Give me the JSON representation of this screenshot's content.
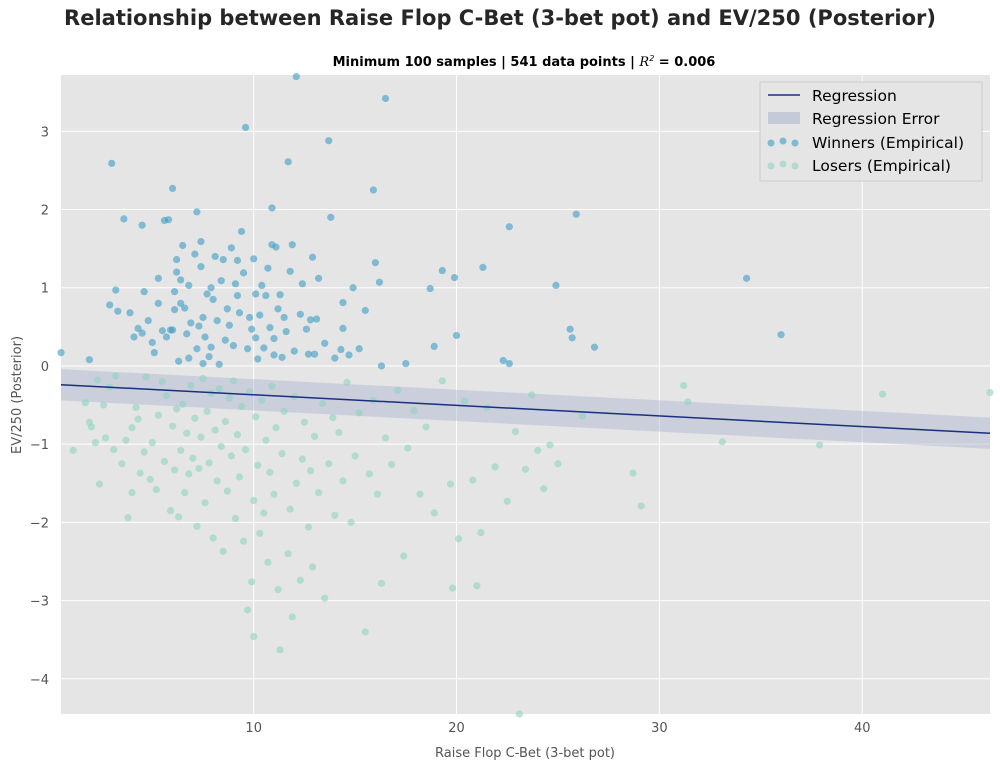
{
  "chart_data": {
    "type": "scatter",
    "title": "Relationship between Raise Flop C-Bet (3-bet pot) and EV/250 (Posterior)",
    "subtitle": {
      "prefix": "Minimum 100 samples | 541 data points | ",
      "r2_label": "R",
      "r2_sup": "2",
      "r2_value": " =  0.006"
    },
    "xlabel": "Raise Flop C-Bet (3-bet pot)",
    "ylabel": "EV/250 (Posterior)",
    "xlim": [
      0.5,
      46.3
    ],
    "ylim": [
      -4.45,
      3.72
    ],
    "xticks": [
      10,
      20,
      30,
      40
    ],
    "yticks": [
      -4,
      -3,
      -2,
      -1,
      0,
      1,
      2,
      3
    ],
    "ytick_labels": [
      "−4",
      "−3",
      "−2",
      "−1",
      "0",
      "1",
      "2",
      "3"
    ],
    "grid": true,
    "legend_position": "top-right",
    "legend": [
      "Regression",
      "Regression Error",
      "Winners (Empirical)",
      "Losers (Empirical)"
    ],
    "colors": {
      "background": "#e5e5e5",
      "grid": "#ffffff",
      "regression": "#1a2f80",
      "band": "#a3b0cc",
      "winners": "#3b9cc4",
      "losers": "#8fd4bf"
    },
    "regression": {
      "x": [
        0.5,
        46.3
      ],
      "y": [
        -0.24,
        -0.86
      ]
    },
    "band": {
      "x": [
        0.5,
        46.3
      ],
      "upper": [
        -0.04,
        -0.66
      ],
      "lower": [
        -0.44,
        -1.06
      ]
    },
    "series": [
      {
        "name": "Winners (Empirical)",
        "points": [
          [
            0.5,
            0.17
          ],
          [
            1.9,
            0.08
          ],
          [
            3.0,
            2.59
          ],
          [
            3.6,
            1.88
          ],
          [
            2.9,
            0.78
          ],
          [
            3.2,
            0.97
          ],
          [
            3.3,
            0.7
          ],
          [
            3.9,
            0.68
          ],
          [
            4.1,
            0.37
          ],
          [
            4.3,
            0.48
          ],
          [
            4.5,
            0.42
          ],
          [
            4.5,
            1.8
          ],
          [
            4.6,
            0.95
          ],
          [
            4.8,
            0.58
          ],
          [
            5.0,
            0.3
          ],
          [
            5.1,
            0.17
          ],
          [
            5.3,
            0.8
          ],
          [
            5.3,
            1.12
          ],
          [
            5.5,
            0.45
          ],
          [
            5.6,
            1.86
          ],
          [
            5.7,
            0.37
          ],
          [
            5.8,
            1.87
          ],
          [
            5.9,
            0.46
          ],
          [
            6.0,
            0.46
          ],
          [
            6.0,
            2.27
          ],
          [
            6.1,
            0.95
          ],
          [
            6.1,
            0.72
          ],
          [
            6.2,
            1.2
          ],
          [
            6.2,
            1.36
          ],
          [
            6.3,
            0.06
          ],
          [
            6.4,
            1.1
          ],
          [
            6.4,
            0.8
          ],
          [
            6.5,
            1.54
          ],
          [
            6.6,
            0.74
          ],
          [
            6.7,
            0.41
          ],
          [
            6.8,
            1.03
          ],
          [
            6.8,
            0.1
          ],
          [
            6.9,
            0.55
          ],
          [
            7.1,
            1.43
          ],
          [
            7.2,
            0.22
          ],
          [
            7.2,
            1.97
          ],
          [
            7.3,
            0.51
          ],
          [
            7.4,
            1.59
          ],
          [
            7.4,
            1.27
          ],
          [
            7.5,
            0.62
          ],
          [
            7.5,
            0.03
          ],
          [
            7.6,
            0.37
          ],
          [
            7.7,
            0.92
          ],
          [
            7.8,
            0.12
          ],
          [
            7.9,
            1.0
          ],
          [
            7.9,
            0.24
          ],
          [
            8.0,
            0.85
          ],
          [
            8.1,
            1.4
          ],
          [
            8.2,
            0.58
          ],
          [
            8.3,
            0.02
          ],
          [
            8.4,
            1.09
          ],
          [
            8.5,
            1.36
          ],
          [
            8.6,
            0.33
          ],
          [
            8.7,
            0.73
          ],
          [
            8.8,
            0.52
          ],
          [
            8.9,
            1.51
          ],
          [
            9.0,
            0.26
          ],
          [
            9.1,
            1.05
          ],
          [
            9.2,
            0.9
          ],
          [
            9.2,
            1.35
          ],
          [
            9.3,
            0.68
          ],
          [
            9.4,
            1.72
          ],
          [
            9.5,
            1.19
          ],
          [
            9.6,
            3.05
          ],
          [
            9.7,
            0.22
          ],
          [
            9.8,
            0.62
          ],
          [
            9.9,
            0.47
          ],
          [
            10.0,
            1.37
          ],
          [
            10.1,
            0.92
          ],
          [
            10.1,
            0.36
          ],
          [
            10.2,
            0.09
          ],
          [
            10.3,
            0.65
          ],
          [
            10.4,
            1.03
          ],
          [
            10.5,
            0.23
          ],
          [
            10.6,
            0.9
          ],
          [
            10.7,
            1.25
          ],
          [
            10.8,
            0.49
          ],
          [
            10.9,
            2.02
          ],
          [
            10.9,
            1.55
          ],
          [
            11.0,
            0.35
          ],
          [
            11.0,
            0.14
          ],
          [
            11.1,
            1.52
          ],
          [
            11.2,
            0.73
          ],
          [
            11.3,
            0.91
          ],
          [
            11.4,
            0.11
          ],
          [
            11.5,
            0.62
          ],
          [
            11.6,
            0.44
          ],
          [
            11.7,
            2.61
          ],
          [
            11.8,
            1.21
          ],
          [
            11.9,
            1.55
          ],
          [
            12.0,
            0.19
          ],
          [
            12.1,
            3.7
          ],
          [
            12.3,
            0.66
          ],
          [
            12.4,
            1.05
          ],
          [
            12.6,
            0.47
          ],
          [
            12.7,
            0.15
          ],
          [
            12.8,
            0.59
          ],
          [
            12.9,
            1.39
          ],
          [
            13.0,
            0.15
          ],
          [
            13.1,
            0.6
          ],
          [
            13.2,
            1.12
          ],
          [
            13.5,
            0.29
          ],
          [
            13.7,
            2.88
          ],
          [
            13.8,
            1.9
          ],
          [
            14.0,
            0.1
          ],
          [
            14.3,
            0.21
          ],
          [
            14.4,
            0.81
          ],
          [
            14.4,
            0.48
          ],
          [
            14.7,
            0.14
          ],
          [
            14.9,
            1.0
          ],
          [
            15.2,
            0.22
          ],
          [
            15.5,
            0.71
          ],
          [
            15.9,
            2.25
          ],
          [
            16.0,
            1.32
          ],
          [
            16.2,
            1.07
          ],
          [
            16.3,
            0.0
          ],
          [
            16.5,
            3.42
          ],
          [
            17.5,
            0.03
          ],
          [
            18.7,
            0.99
          ],
          [
            18.9,
            0.25
          ],
          [
            19.3,
            1.22
          ],
          [
            19.9,
            1.13
          ],
          [
            20.0,
            0.39
          ],
          [
            21.3,
            1.26
          ],
          [
            22.3,
            0.07
          ],
          [
            22.6,
            1.78
          ],
          [
            22.6,
            0.03
          ],
          [
            24.9,
            1.03
          ],
          [
            25.6,
            0.47
          ],
          [
            25.7,
            0.36
          ],
          [
            25.9,
            1.94
          ],
          [
            26.8,
            0.24
          ],
          [
            34.3,
            1.12
          ],
          [
            36.0,
            0.4
          ]
        ]
      },
      {
        "name": "Losers (Empirical)",
        "points": [
          [
            1.1,
            -1.08
          ],
          [
            1.7,
            -0.47
          ],
          [
            1.9,
            -0.72
          ],
          [
            2.0,
            -0.78
          ],
          [
            2.2,
            -0.98
          ],
          [
            2.3,
            -0.18
          ],
          [
            2.4,
            -1.51
          ],
          [
            2.6,
            -0.5
          ],
          [
            2.7,
            -0.92
          ],
          [
            2.9,
            -0.27
          ],
          [
            3.1,
            -1.07
          ],
          [
            3.2,
            -0.13
          ],
          [
            3.5,
            -1.25
          ],
          [
            3.7,
            -0.95
          ],
          [
            3.8,
            -1.94
          ],
          [
            4.0,
            -0.79
          ],
          [
            4.0,
            -1.62
          ],
          [
            4.2,
            -0.53
          ],
          [
            4.3,
            -0.68
          ],
          [
            4.4,
            -1.37
          ],
          [
            4.6,
            -1.1
          ],
          [
            4.7,
            -0.14
          ],
          [
            4.9,
            -1.45
          ],
          [
            5.0,
            -0.98
          ],
          [
            5.2,
            -1.58
          ],
          [
            5.3,
            -0.63
          ],
          [
            5.5,
            -0.2
          ],
          [
            5.6,
            -1.22
          ],
          [
            5.7,
            -0.38
          ],
          [
            5.9,
            -1.85
          ],
          [
            6.0,
            -0.77
          ],
          [
            6.1,
            -1.33
          ],
          [
            6.2,
            -0.55
          ],
          [
            6.3,
            -1.93
          ],
          [
            6.4,
            -1.08
          ],
          [
            6.5,
            -0.49
          ],
          [
            6.6,
            -1.62
          ],
          [
            6.7,
            -0.86
          ],
          [
            6.8,
            -1.38
          ],
          [
            6.9,
            -0.25
          ],
          [
            7.0,
            -1.18
          ],
          [
            7.1,
            -0.67
          ],
          [
            7.2,
            -2.05
          ],
          [
            7.3,
            -1.31
          ],
          [
            7.4,
            -0.91
          ],
          [
            7.5,
            -0.16
          ],
          [
            7.6,
            -1.75
          ],
          [
            7.7,
            -0.58
          ],
          [
            7.8,
            -1.24
          ],
          [
            7.9,
            -0.35
          ],
          [
            8.0,
            -2.2
          ],
          [
            8.1,
            -0.82
          ],
          [
            8.2,
            -1.47
          ],
          [
            8.3,
            -0.29
          ],
          [
            8.4,
            -1.03
          ],
          [
            8.5,
            -2.37
          ],
          [
            8.6,
            -0.71
          ],
          [
            8.7,
            -1.6
          ],
          [
            8.8,
            -0.41
          ],
          [
            8.9,
            -1.15
          ],
          [
            9.0,
            -0.19
          ],
          [
            9.1,
            -1.95
          ],
          [
            9.2,
            -0.88
          ],
          [
            9.3,
            -1.42
          ],
          [
            9.4,
            -0.52
          ],
          [
            9.5,
            -2.24
          ],
          [
            9.6,
            -1.07
          ],
          [
            9.7,
            -3.12
          ],
          [
            9.8,
            -0.33
          ],
          [
            9.9,
            -2.76
          ],
          [
            10.0,
            -1.72
          ],
          [
            10.0,
            -3.46
          ],
          [
            10.1,
            -0.65
          ],
          [
            10.2,
            -1.27
          ],
          [
            10.3,
            -2.14
          ],
          [
            10.4,
            -0.44
          ],
          [
            10.5,
            -1.88
          ],
          [
            10.6,
            -0.95
          ],
          [
            10.7,
            -2.51
          ],
          [
            10.8,
            -1.36
          ],
          [
            10.9,
            -0.26
          ],
          [
            11.0,
            -1.64
          ],
          [
            11.1,
            -0.79
          ],
          [
            11.2,
            -2.86
          ],
          [
            11.3,
            -3.63
          ],
          [
            11.4,
            -1.12
          ],
          [
            11.5,
            -0.58
          ],
          [
            11.7,
            -2.4
          ],
          [
            11.8,
            -1.83
          ],
          [
            11.9,
            -3.21
          ],
          [
            12.0,
            -0.39
          ],
          [
            12.1,
            -1.5
          ],
          [
            12.3,
            -2.74
          ],
          [
            12.4,
            -1.19
          ],
          [
            12.5,
            -0.72
          ],
          [
            12.7,
            -2.06
          ],
          [
            12.8,
            -1.34
          ],
          [
            12.9,
            -2.57
          ],
          [
            13.0,
            -0.9
          ],
          [
            13.2,
            -1.62
          ],
          [
            13.4,
            -0.48
          ],
          [
            13.5,
            -2.97
          ],
          [
            13.7,
            -1.25
          ],
          [
            13.9,
            -0.66
          ],
          [
            14.0,
            -1.91
          ],
          [
            14.2,
            -0.85
          ],
          [
            14.4,
            -1.47
          ],
          [
            14.6,
            -0.21
          ],
          [
            14.8,
            -2.0
          ],
          [
            15.0,
            -1.15
          ],
          [
            15.2,
            -0.6
          ],
          [
            15.5,
            -3.4
          ],
          [
            15.7,
            -1.38
          ],
          [
            15.9,
            -0.44
          ],
          [
            16.1,
            -1.64
          ],
          [
            16.3,
            -2.78
          ],
          [
            16.5,
            -0.92
          ],
          [
            16.8,
            -1.26
          ],
          [
            17.1,
            -0.31
          ],
          [
            17.4,
            -2.43
          ],
          [
            17.6,
            -1.05
          ],
          [
            17.9,
            -0.57
          ],
          [
            18.2,
            -1.64
          ],
          [
            18.5,
            -0.78
          ],
          [
            18.9,
            -1.88
          ],
          [
            19.3,
            -0.19
          ],
          [
            19.7,
            -1.51
          ],
          [
            19.8,
            -2.84
          ],
          [
            20.1,
            -2.21
          ],
          [
            20.4,
            -0.45
          ],
          [
            20.8,
            -1.46
          ],
          [
            21.0,
            -2.81
          ],
          [
            21.2,
            -2.13
          ],
          [
            21.5,
            -0.53
          ],
          [
            21.9,
            -1.29
          ],
          [
            22.5,
            -1.73
          ],
          [
            22.9,
            -0.84
          ],
          [
            23.1,
            -4.45
          ],
          [
            23.4,
            -1.32
          ],
          [
            23.7,
            -0.37
          ],
          [
            24.0,
            -1.08
          ],
          [
            24.3,
            -1.57
          ],
          [
            24.6,
            -1.01
          ],
          [
            25.0,
            -1.25
          ],
          [
            26.2,
            -0.64
          ],
          [
            28.7,
            -1.37
          ],
          [
            29.1,
            -1.79
          ],
          [
            31.2,
            -0.25
          ],
          [
            31.4,
            -0.46
          ],
          [
            33.1,
            -0.97
          ],
          [
            37.9,
            -1.01
          ],
          [
            41.0,
            -0.36
          ],
          [
            46.3,
            -0.34
          ]
        ]
      }
    ]
  }
}
